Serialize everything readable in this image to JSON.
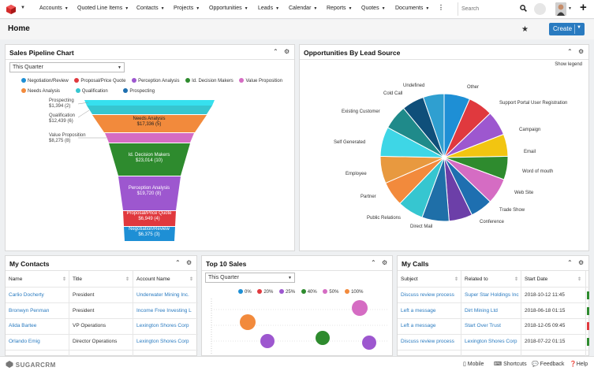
{
  "nav": {
    "items": [
      "Accounts",
      "Quoted Line Items",
      "Contacts",
      "Projects",
      "Opportunities",
      "Leads",
      "Calendar",
      "Reports",
      "Quotes",
      "Documents"
    ],
    "search_placeholder": "Search"
  },
  "header": {
    "title": "Home",
    "create_label": "Create"
  },
  "pipeline": {
    "title": "Sales Pipeline Chart",
    "filter": "This Quarter",
    "legend": [
      {
        "name": "Negotiation/Review",
        "color": "#1e8fd5"
      },
      {
        "name": "Proposal/Price Quote",
        "color": "#e0393e"
      },
      {
        "name": "Perception Analysis",
        "color": "#9d57cf"
      },
      {
        "name": "Id. Decision Makers",
        "color": "#2e8b2e"
      },
      {
        "name": "Value Proposition",
        "color": "#d56cc3"
      },
      {
        "name": "Needs Analysis",
        "color": "#f28a3c"
      },
      {
        "name": "Qualification",
        "color": "#36c6d0"
      },
      {
        "name": "Prospecting",
        "color": "#1e6fb0"
      }
    ],
    "outside_labels": [
      {
        "name": "Prospecting",
        "value": "$1,394 (2)"
      },
      {
        "name": "Qualification",
        "value": "$12,439 (6)"
      },
      {
        "name": "Value Proposition",
        "value": "$8,275 (8)"
      }
    ],
    "inner_labels": [
      {
        "name": "Needs Analysis",
        "value": "$17,336 (5)"
      },
      {
        "name": "Id. Decision Makers",
        "value": "$23,014 (10)"
      },
      {
        "name": "Perception Analysis",
        "value": "$19,720 (8)"
      },
      {
        "name": "Proposal/Price Quote",
        "value": "$6,949 (4)"
      },
      {
        "name": "Negotiation/Review",
        "value": "$6,375 (3)"
      }
    ]
  },
  "chart_data": [
    {
      "type": "bar",
      "title": "Sales Pipeline Chart",
      "categories": [
        "Prospecting",
        "Qualification",
        "Needs Analysis",
        "Value Proposition",
        "Id. Decision Makers",
        "Perception Analysis",
        "Proposal/Price Quote",
        "Negotiation/Review"
      ],
      "values": [
        1394,
        12439,
        17336,
        8275,
        23014,
        19720,
        6949,
        6375
      ],
      "counts": [
        2,
        6,
        5,
        8,
        10,
        8,
        4,
        3
      ]
    },
    {
      "type": "pie",
      "title": "Opportunities By Lead Source",
      "categories": [
        "Other",
        "Support Portal User Registration",
        "Campaign",
        "Email",
        "Word of mouth",
        "Web Site",
        "Trade Show",
        "Conference",
        "Direct Mail",
        "Public Relations",
        "Partner",
        "Employee",
        "Self Generated",
        "Existing Customer",
        "Cold Call",
        "Undefined"
      ],
      "colors": [
        "#1e8fd5",
        "#e0393e",
        "#9d57cf",
        "#f2c511",
        "#2e8b2e",
        "#d56cc3",
        "#1e6fb0",
        "#6c3fa8",
        "#1f6fa8",
        "#36c6d0",
        "#f28a3c",
        "#e8993f",
        "#3ed6e6",
        "#1f8a8a",
        "#0f4f7a",
        "#2f9fd0"
      ]
    }
  ],
  "leadsource": {
    "title": "Opportunities By Lead Source",
    "show_legend": "Show legend"
  },
  "contacts": {
    "title": "My Contacts",
    "columns": [
      "Name",
      "Title",
      "Account Name"
    ],
    "rows": [
      [
        "Carlio Docherty",
        "President",
        "Underwater Mining Inc."
      ],
      [
        "Bronwyn Penman",
        "President",
        "Income Free Investing L"
      ],
      [
        "Alida Bartee",
        "VP Operations",
        "Lexington Shores Corp"
      ],
      [
        "Orlando Emig",
        "Director Operations",
        "Lexington Shores Corp"
      ]
    ]
  },
  "top10": {
    "title": "Top 10 Sales",
    "filter": "This Quarter",
    "legend": [
      {
        "name": "0%",
        "color": "#1e8fd5"
      },
      {
        "name": "20%",
        "color": "#e0393e"
      },
      {
        "name": "25%",
        "color": "#9d57cf"
      },
      {
        "name": "40%",
        "color": "#2e8b2e"
      },
      {
        "name": "50%",
        "color": "#d56cc3"
      },
      {
        "name": "100%",
        "color": "#f28a3c"
      }
    ]
  },
  "calls": {
    "title": "My Calls",
    "columns": [
      "Subject",
      "Related to",
      "Start Date"
    ],
    "rows": [
      [
        "Discuss review process",
        "Super Star Holdings Inc",
        "2018-10-12 11:45"
      ],
      [
        "Left a message",
        "Dirt Mining Ltd",
        "2018-06-18 01:15"
      ],
      [
        "Left a message",
        "Start Over Trust",
        "2018-12-05 09:45"
      ],
      [
        "Discuss review process",
        "Lexington Shores Corp",
        "2018-07-22 01:15"
      ]
    ]
  },
  "footer": {
    "logo": "SUGARCRM",
    "mobile": "Mobile",
    "shortcuts": "Shortcuts",
    "feedback": "Feedback",
    "help": "Help"
  }
}
